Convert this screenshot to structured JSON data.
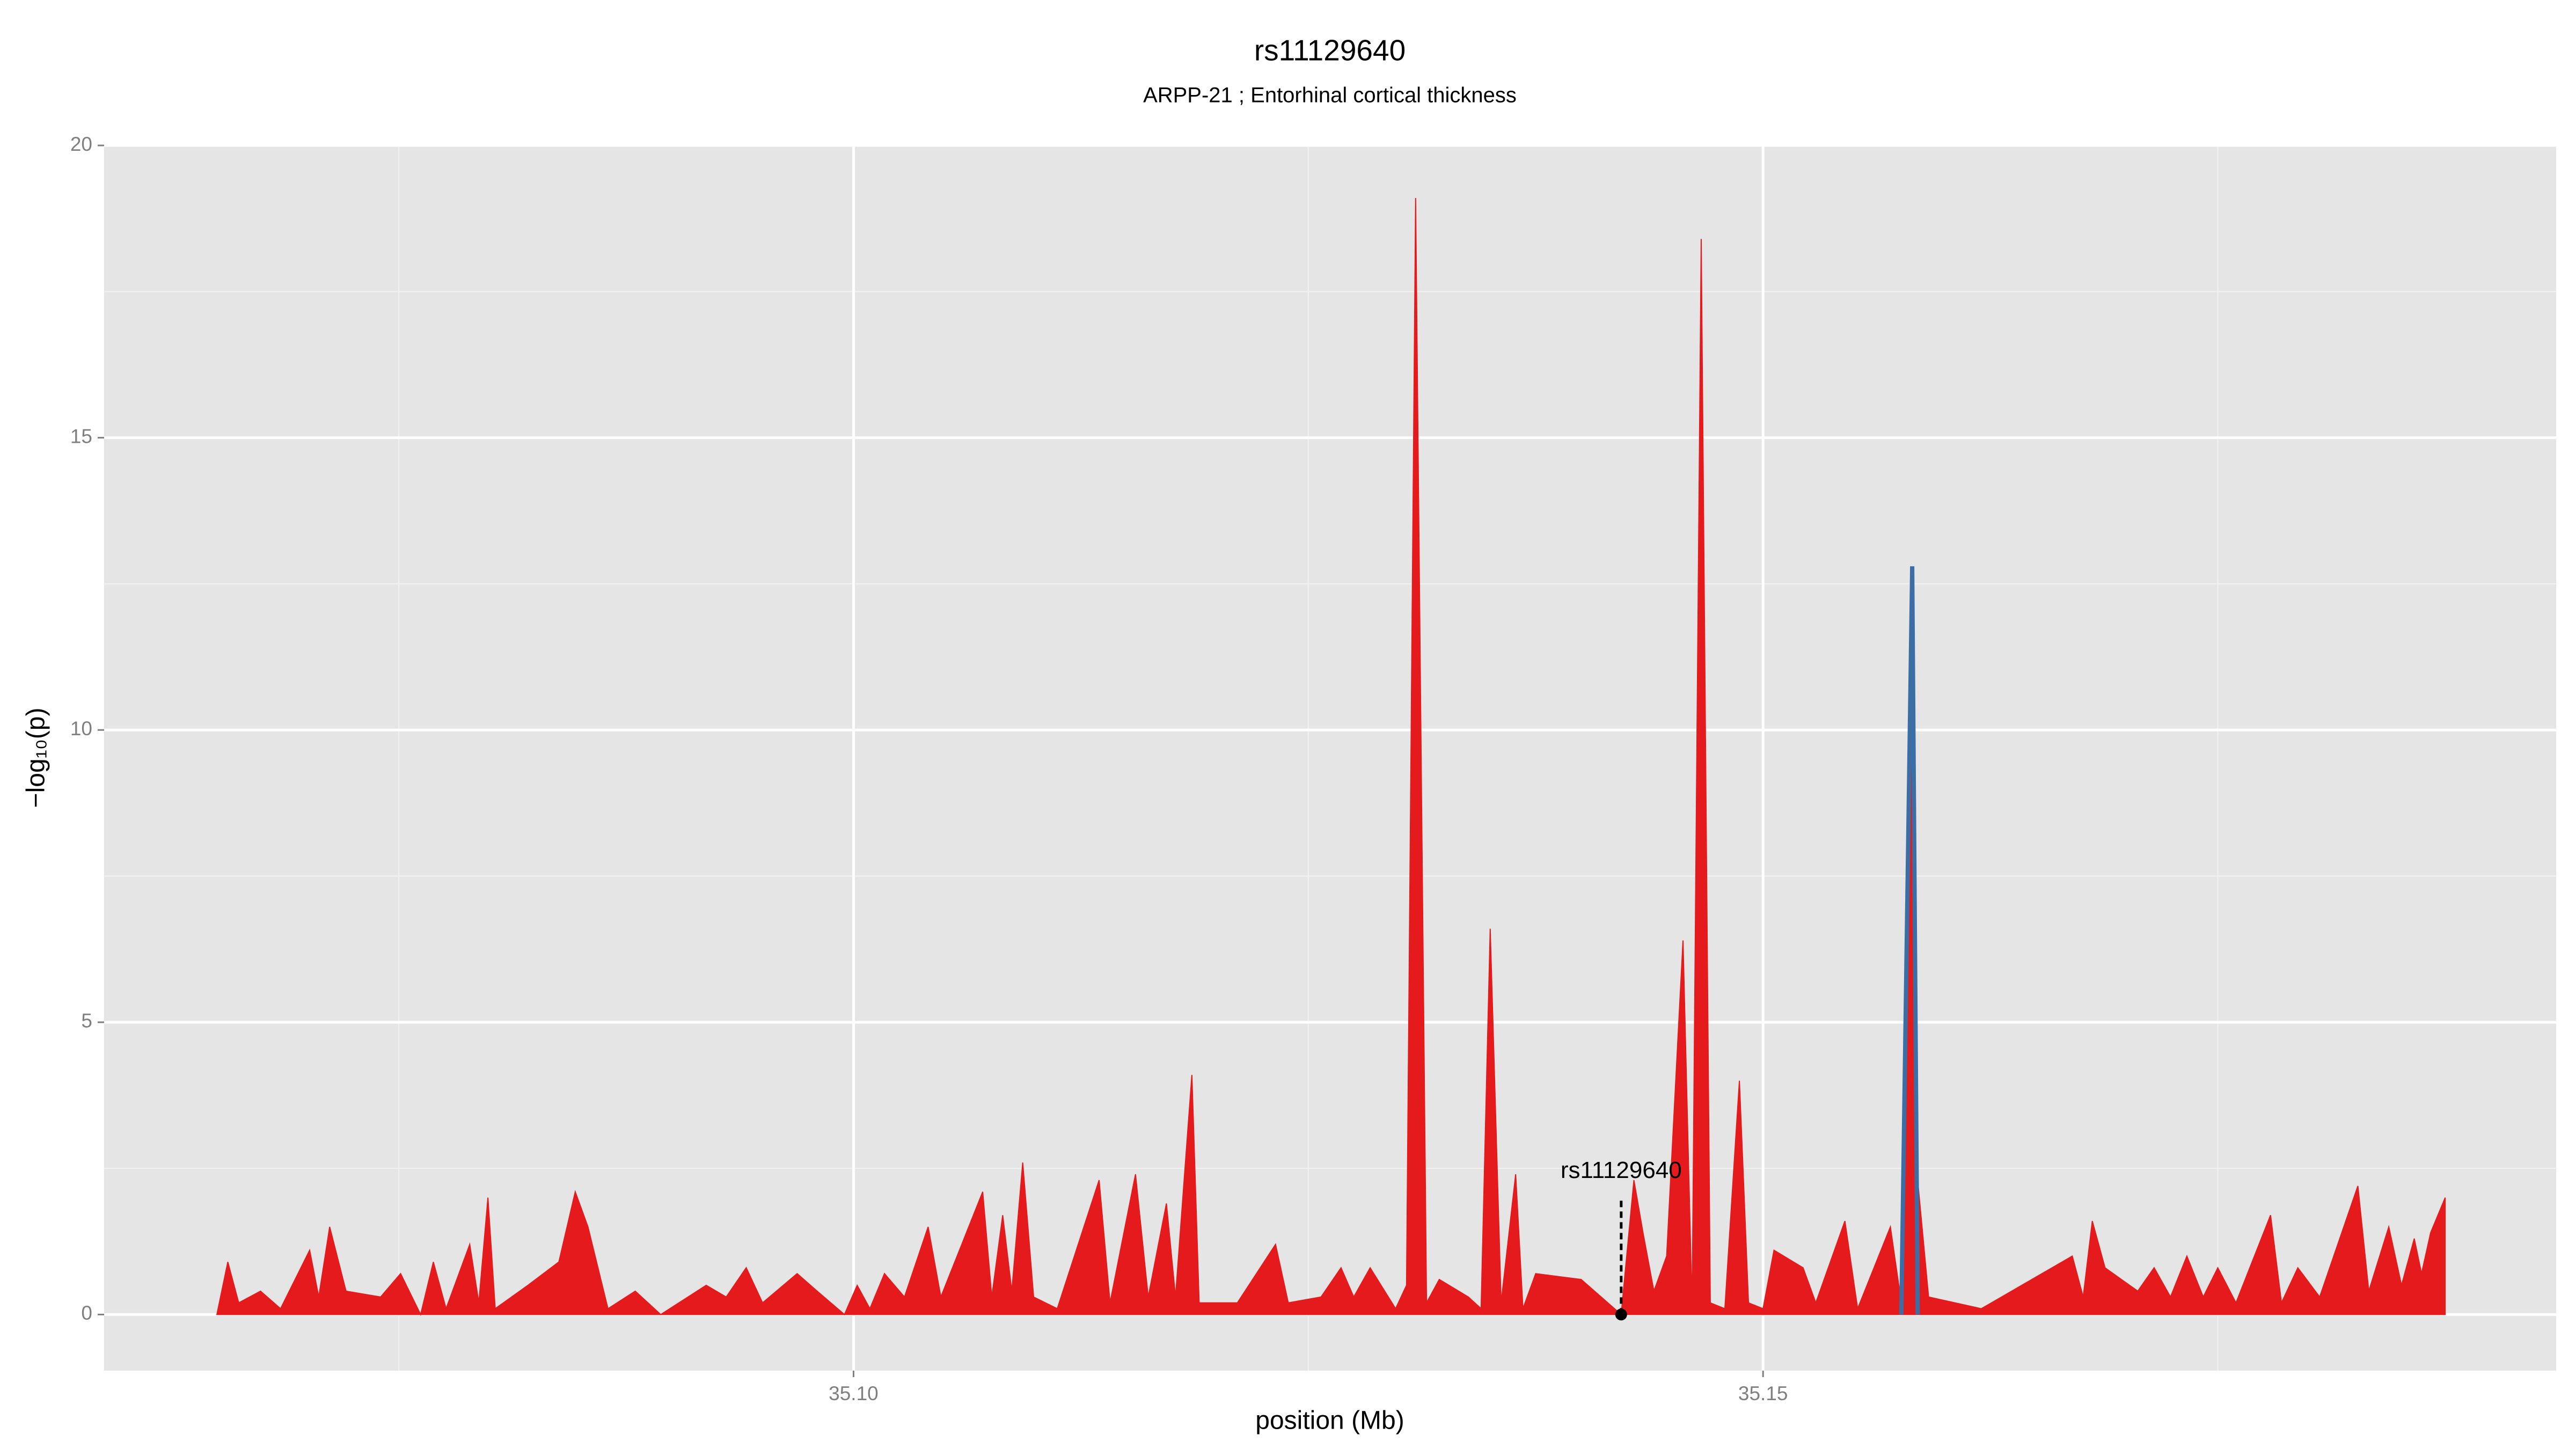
{
  "chart_data": {
    "type": "area",
    "title": "rs11129640",
    "subtitle": "ARPP-21 ; Entorhinal cortical thickness",
    "xlabel": "position (Mb)",
    "ylabel": "−log₁₀(p)",
    "xlim": [
      35.0588,
      35.1936
    ],
    "ylim": [
      -0.96,
      20
    ],
    "xticks": [
      {
        "value": 35.1,
        "label": "35.10"
      },
      35.15
    ],
    "yticks": [
      0,
      5,
      10,
      15,
      20
    ],
    "xminor": [
      35.075,
      35.125,
      35.175
    ],
    "yminor": [
      2.5,
      7.5,
      12.5,
      17.5
    ],
    "grid": true,
    "x": [
      35.065,
      35.0656,
      35.0662,
      35.0674,
      35.0685,
      35.0701,
      35.0706,
      35.0712,
      35.0721,
      35.074,
      35.0751,
      35.0762,
      35.0769,
      35.0776,
      35.0789,
      35.0794,
      35.0799,
      35.0803,
      35.0821,
      35.0838,
      35.0847,
      35.0854,
      35.0865,
      35.088,
      35.0894,
      35.0919,
      35.093,
      35.0941,
      35.095,
      35.0969,
      35.098,
      35.0995,
      35.1002,
      35.1009,
      35.1017,
      35.1028,
      35.1041,
      35.1048,
      35.1071,
      35.1076,
      35.1082,
      35.1087,
      35.1093,
      35.1099,
      35.1112,
      35.1135,
      35.1141,
      35.1155,
      35.1162,
      35.1172,
      35.1177,
      35.1186,
      35.119,
      35.1211,
      35.1232,
      35.1239,
      35.1257,
      35.1268,
      35.1275,
      35.1284,
      35.1298,
      35.1304,
      35.1309,
      35.1315,
      35.1322,
      35.1338,
      35.1345,
      35.135,
      35.1356,
      35.1364,
      35.1368,
      35.1375,
      35.14,
      35.1411,
      35.1422,
      35.1429,
      35.1434,
      35.144,
      35.1447,
      35.1456,
      35.1461,
      35.1466,
      35.1471,
      35.1479,
      35.1487,
      35.1492,
      35.15,
      35.1506,
      35.1522,
      35.1529,
      35.1545,
      35.1552,
      35.157,
      35.1576,
      35.1582,
      35.1585,
      35.1591,
      35.162,
      35.167,
      35.1676,
      35.1681,
      35.1688,
      35.1706,
      35.1715,
      35.1724,
      35.1733,
      35.1742,
      35.175,
      35.176,
      35.1779,
      35.1785,
      35.1794,
      35.1806,
      35.1827,
      35.1833,
      35.1844,
      35.1851,
      35.1858,
      35.1862,
      35.1867,
      35.1875
    ],
    "series": [
      {
        "kind": "area",
        "color": "#e41a1c",
        "values": [
          0,
          0.9,
          0.2,
          0.4,
          0.1,
          1.1,
          0.3,
          1.5,
          0.4,
          0.3,
          0.7,
          0,
          0.9,
          0.1,
          1.2,
          0.2,
          2.0,
          0.1,
          0.5,
          0.9,
          2.1,
          1.5,
          0.1,
          0.4,
          0,
          0.5,
          0.3,
          0.8,
          0.2,
          0.7,
          0.4,
          0,
          0.5,
          0.1,
          0.7,
          0.3,
          1.5,
          0.3,
          2.1,
          0.3,
          1.7,
          0.4,
          2.6,
          0.3,
          0.1,
          2.3,
          0.2,
          2.4,
          0.3,
          1.9,
          0.3,
          4.1,
          0.2,
          0.2,
          1.2,
          0.2,
          0.3,
          0.8,
          0.3,
          0.8,
          0.1,
          0.5,
          19.1,
          0.2,
          0.6,
          0.3,
          0.1,
          6.6,
          0.2,
          2.4,
          0.1,
          0.7,
          0.6,
          0.3,
          0,
          2.3,
          1.4,
          0.4,
          1.0,
          6.4,
          0.1,
          18.4,
          0.2,
          0.1,
          4.0,
          0.2,
          0.1,
          1.1,
          0.8,
          0.2,
          1.6,
          0.1,
          1.5,
          0.2,
          11.5,
          2.3,
          0.3,
          0.1,
          1.0,
          0.3,
          1.6,
          0.8,
          0.4,
          0.8,
          0.3,
          1.0,
          0.3,
          0.8,
          0.2,
          1.7,
          0.2,
          0.8,
          0.3,
          2.2,
          0.4,
          1.5,
          0.5,
          1.3,
          0.7,
          1.4,
          2.0
        ]
      },
      {
        "kind": "line",
        "color": "#3a6ea5",
        "values": [
          null,
          null,
          null,
          null,
          null,
          null,
          null,
          null,
          null,
          null,
          null,
          null,
          null,
          null,
          null,
          null,
          null,
          null,
          null,
          null,
          null,
          null,
          null,
          null,
          null,
          null,
          null,
          null,
          null,
          null,
          null,
          null,
          null,
          null,
          null,
          null,
          null,
          null,
          null,
          null,
          null,
          null,
          null,
          null,
          null,
          null,
          null,
          null,
          null,
          null,
          null,
          null,
          null,
          null,
          null,
          null,
          null,
          null,
          null,
          null,
          null,
          null,
          null,
          null,
          null,
          null,
          null,
          null,
          null,
          null,
          null,
          null,
          null,
          null,
          null,
          null,
          null,
          null,
          null,
          null,
          null,
          null,
          null,
          null,
          null,
          null,
          null,
          null,
          null,
          null,
          null,
          null,
          null,
          0,
          12.8,
          0,
          null,
          null,
          null,
          null,
          null,
          null,
          null,
          null,
          null,
          null,
          null,
          null,
          null,
          null,
          null,
          null,
          null,
          null,
          null,
          null,
          null,
          null,
          null,
          null,
          null
        ]
      }
    ],
    "annotation": {
      "text": "rs11129640",
      "x": 35.1422,
      "y": 2.0,
      "point": 0
    }
  }
}
